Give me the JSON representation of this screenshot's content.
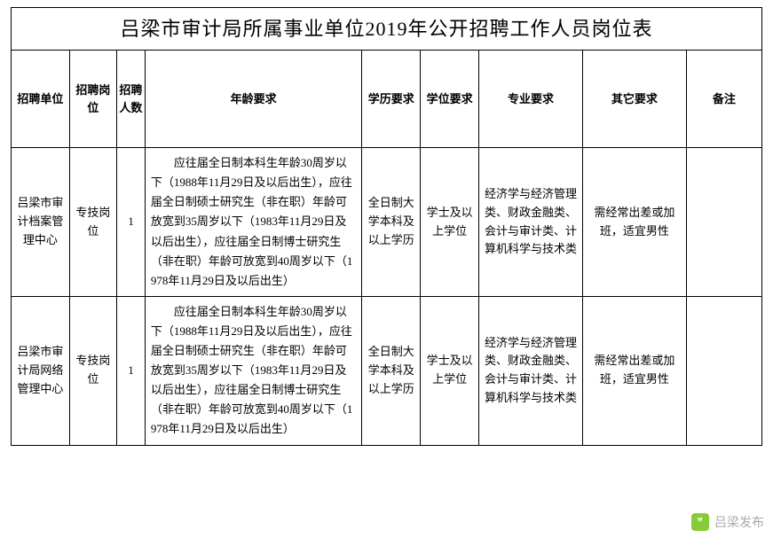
{
  "title": "吕梁市审计局所属事业单位2019年公开招聘工作人员岗位表",
  "columns": {
    "unit": "招聘单位",
    "post": "招聘岗位",
    "count": "招聘人数",
    "age": "年龄要求",
    "edu": "学历要求",
    "degree": "学位要求",
    "major": "专业要求",
    "other": "其它要求",
    "note": "备注"
  },
  "col_widths": [
    "62",
    "50",
    "30",
    "230",
    "62",
    "62",
    "110",
    "110",
    "80"
  ],
  "rows": [
    {
      "unit": "吕梁市审计档案管理中心",
      "post": "专技岗位",
      "count": "1",
      "age": "应往届全日制本科生年龄30周岁以下（1988年11月29日及以后出生），应往届全日制硕士研究生（非在职）年龄可放宽到35周岁以下（1983年11月29日及以后出生），应往届全日制博士研究生（非在职）年龄可放宽到40周岁以下（1978年11月29日及以后出生）",
      "edu": "全日制大学本科及以上学历",
      "degree": "学士及以上学位",
      "major": "经济学与经济管理类、财政金融类、会计与审计类、计算机科学与技术类",
      "other": "需经常出差或加班，适宜男性",
      "note": ""
    },
    {
      "unit": "吕梁市审计局网络管理中心",
      "post": "专技岗位",
      "count": "1",
      "age": "应往届全日制本科生年龄30周岁以下（1988年11月29日及以后出生），应往届全日制硕士研究生（非在职）年龄可放宽到35周岁以下（1983年11月29日及以后出生），应往届全日制博士研究生（非在职）年龄可放宽到40周岁以下（1978年11月29日及以后出生）",
      "edu": "全日制大学本科及以上学历",
      "degree": "学士及以上学位",
      "major": "经济学与经济管理类、财政金融类、会计与审计类、计算机科学与技术类",
      "other": "需经常出差或加班，适宜男性",
      "note": ""
    }
  ],
  "watermark": {
    "icon_glyph": "❞",
    "text": "吕梁发布"
  },
  "style": {
    "border_color": "#000000",
    "background": "#ffffff",
    "title_fontsize": 22,
    "header_fontsize": 14,
    "body_fontsize": 13
  }
}
